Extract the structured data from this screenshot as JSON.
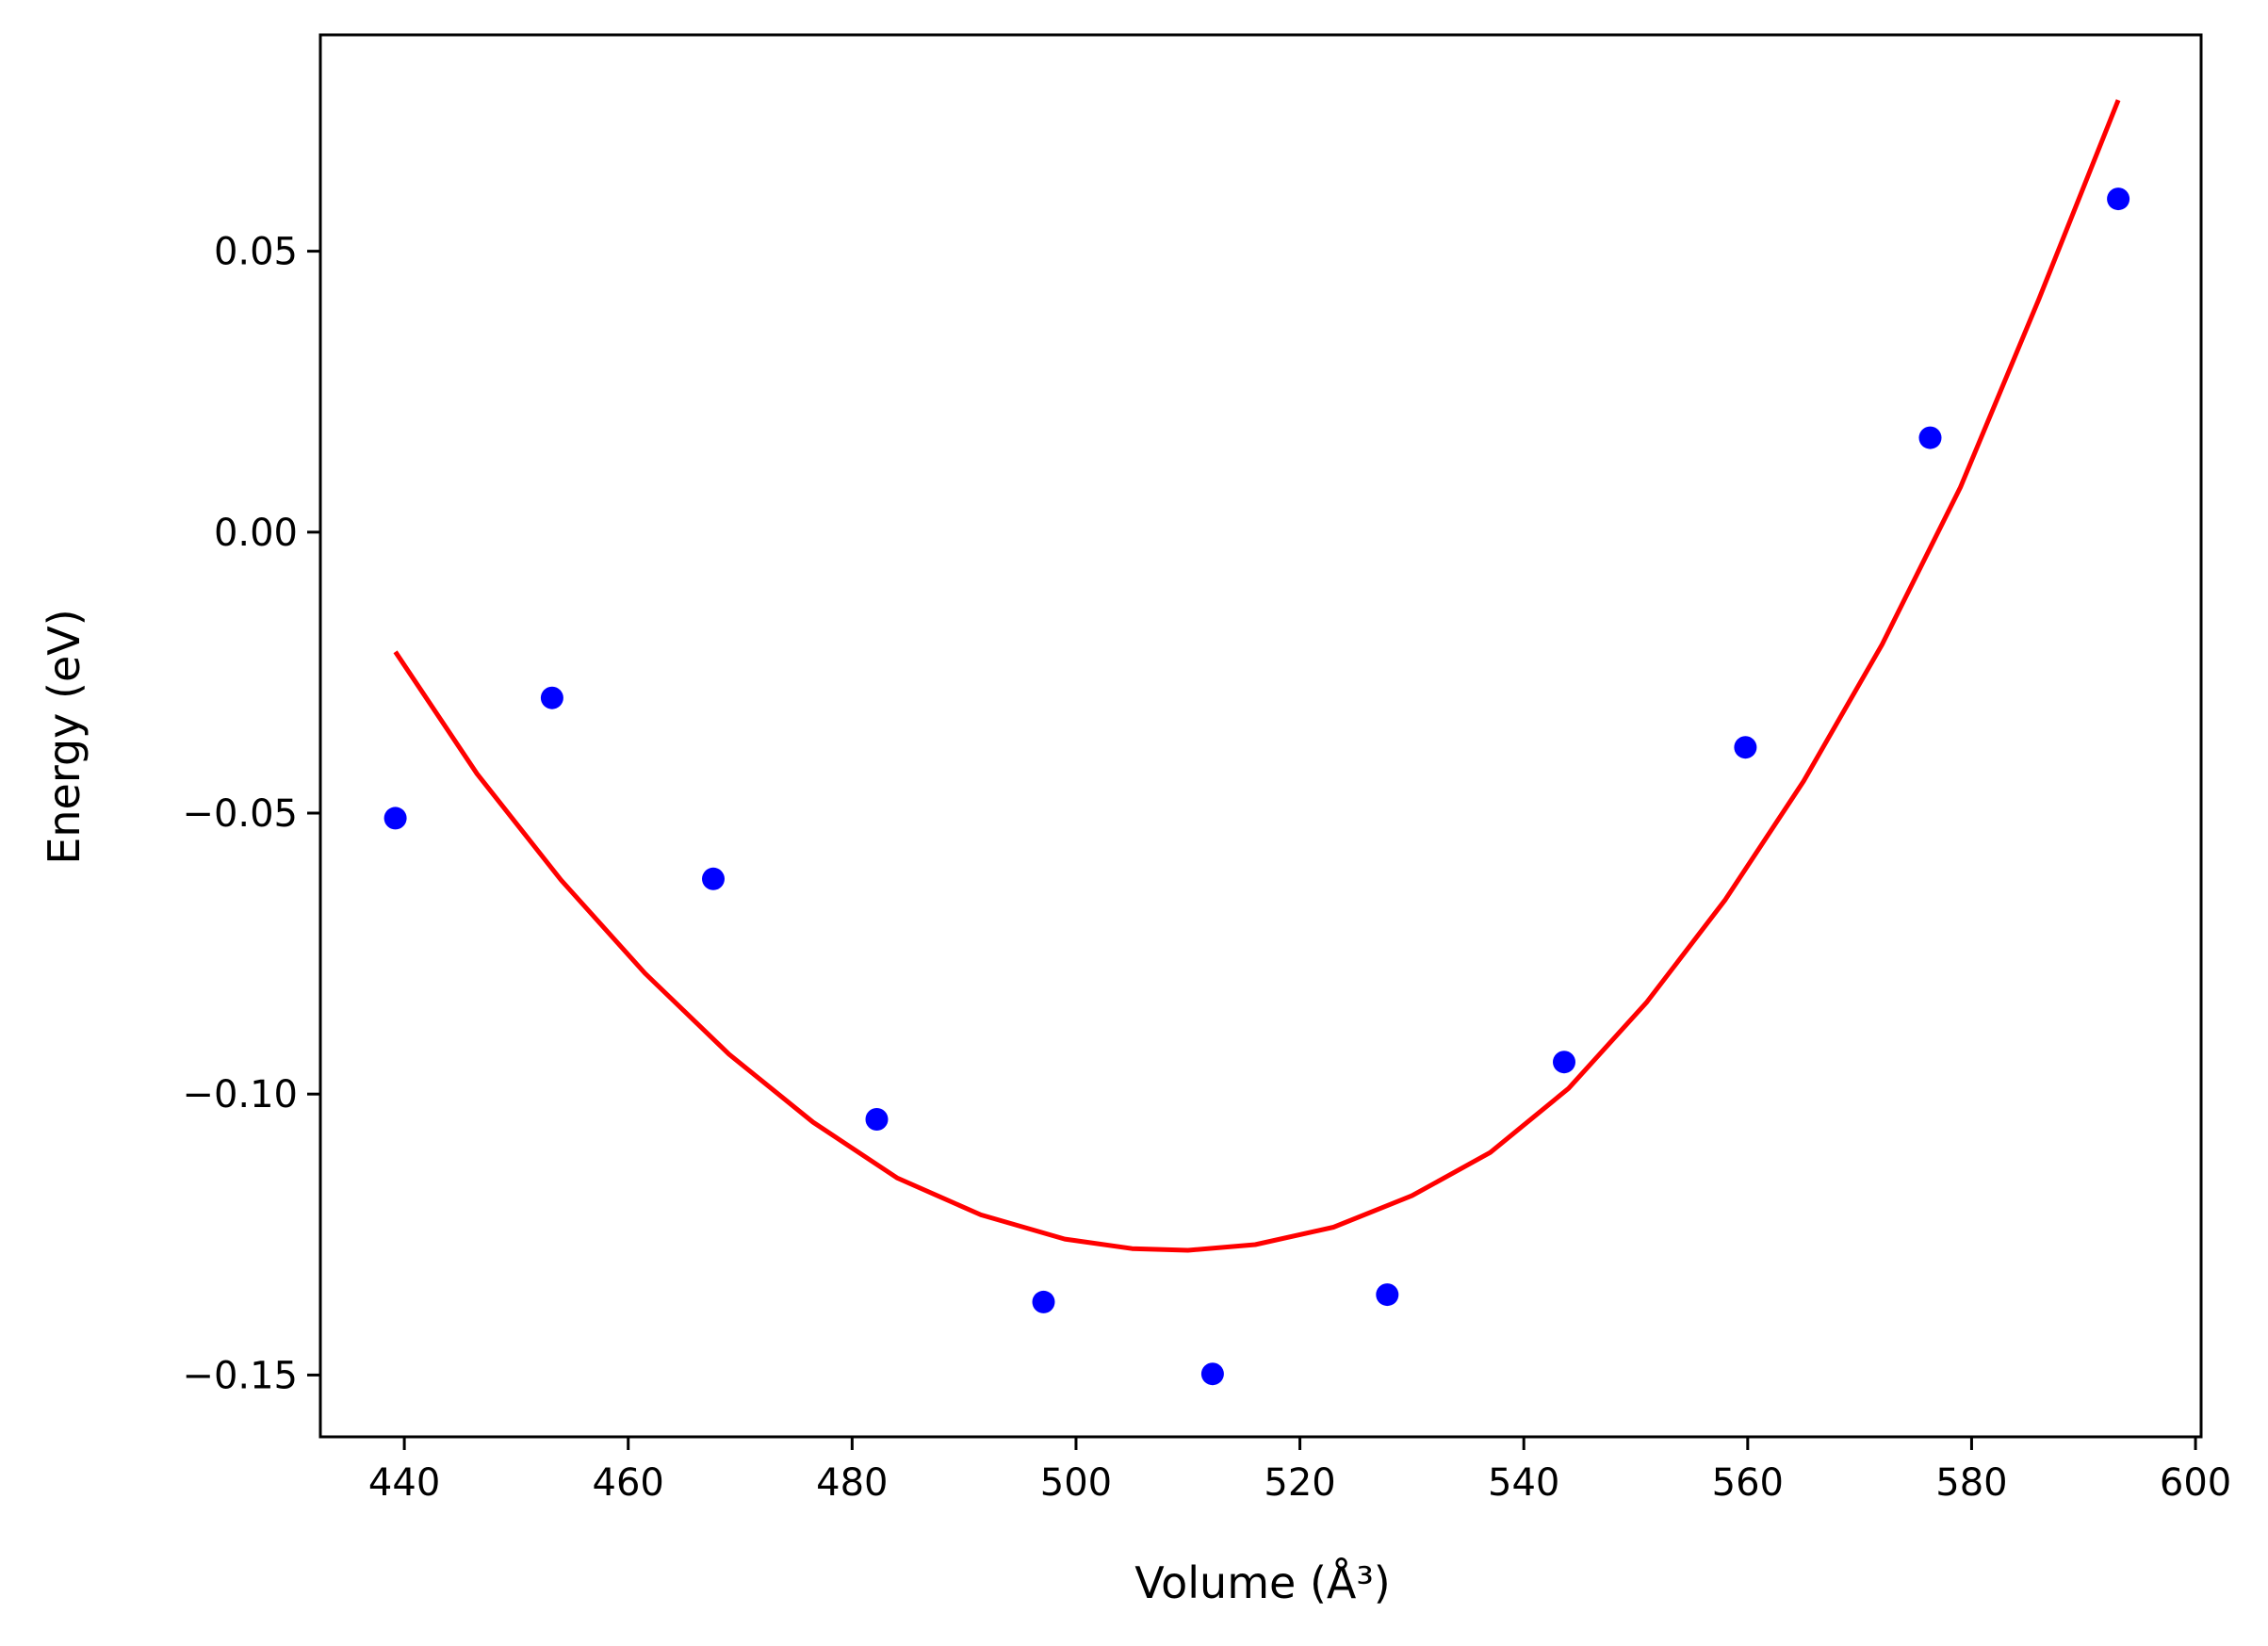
{
  "chart_data": {
    "type": "scatter",
    "title": "",
    "xlabel": "Volume (Å³)",
    "ylabel": "Energy (eV)",
    "xlim": [
      432.5,
      600.5
    ],
    "ylim": [
      -0.161,
      0.0885
    ],
    "x_ticks": [
      440,
      460,
      480,
      500,
      520,
      540,
      560,
      580,
      600
    ],
    "x_tick_labels": [
      "440",
      "460",
      "480",
      "500",
      "520",
      "540",
      "560",
      "580",
      "600"
    ],
    "y_ticks": [
      -0.15,
      -0.1,
      -0.05,
      0.0,
      0.05
    ],
    "y_tick_labels": [
      "−0.15",
      "−0.10",
      "−0.05",
      "0.00",
      "0.05"
    ],
    "grid": false,
    "series": [
      {
        "kind": "scatter",
        "color": "#0000ff",
        "points": [
          {
            "x": 439.2,
            "y": -0.0509
          },
          {
            "x": 453.2,
            "y": -0.0295
          },
          {
            "x": 467.6,
            "y": -0.0617
          },
          {
            "x": 482.2,
            "y": -0.1045
          },
          {
            "x": 497.1,
            "y": -0.137
          },
          {
            "x": 512.2,
            "y": -0.1498
          },
          {
            "x": 527.8,
            "y": -0.1357
          },
          {
            "x": 543.6,
            "y": -0.0943
          },
          {
            "x": 559.8,
            "y": -0.0383
          },
          {
            "x": 576.3,
            "y": 0.0168
          },
          {
            "x": 593.1,
            "y": 0.0593
          }
        ]
      },
      {
        "kind": "line",
        "color": "#ff0000",
        "points": [
          {
            "x": 439.2,
            "y": -0.0213
          },
          {
            "x": 446.5,
            "y": -0.043
          },
          {
            "x": 454.0,
            "y": -0.0619
          },
          {
            "x": 461.5,
            "y": -0.0785
          },
          {
            "x": 469.0,
            "y": -0.0929
          },
          {
            "x": 476.5,
            "y": -0.105
          },
          {
            "x": 484.0,
            "y": -0.1149
          },
          {
            "x": 491.5,
            "y": -0.1215
          },
          {
            "x": 499.0,
            "y": -0.1258
          },
          {
            "x": 505.0,
            "y": -0.1275
          },
          {
            "x": 510.0,
            "y": -0.1278
          },
          {
            "x": 516.0,
            "y": -0.1268
          },
          {
            "x": 523.0,
            "y": -0.1237
          },
          {
            "x": 530.0,
            "y": -0.1181
          },
          {
            "x": 537.0,
            "y": -0.1104
          },
          {
            "x": 544.0,
            "y": -0.099
          },
          {
            "x": 551.0,
            "y": -0.0836
          },
          {
            "x": 558.0,
            "y": -0.0654
          },
          {
            "x": 565.0,
            "y": -0.0443
          },
          {
            "x": 572.0,
            "y": -0.02
          },
          {
            "x": 579.0,
            "y": 0.008
          },
          {
            "x": 586.0,
            "y": 0.0414
          },
          {
            "x": 593.1,
            "y": 0.0769
          }
        ]
      }
    ]
  }
}
